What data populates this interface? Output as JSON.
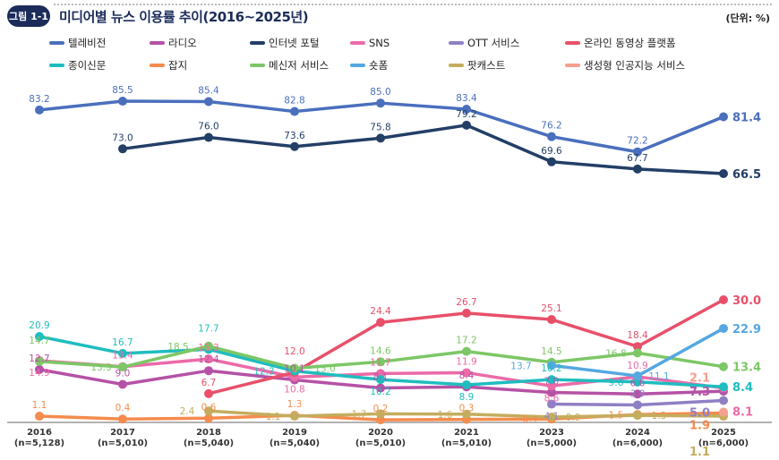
{
  "header": {
    "badge": "그림 1-1",
    "title": "미디어별 뉴스 이용률 추이(2016~2025년)",
    "unit": "(단위: %)"
  },
  "chart_data": {
    "type": "line",
    "title": "미디어별 뉴스 이용률 추이(2016~2025년)",
    "unit": "(단위: %)",
    "categories": [
      "2016",
      "2017",
      "2018",
      "2019",
      "2020",
      "2021",
      "2023",
      "2024",
      "2025"
    ],
    "sample_sizes": [
      "(n=5,128)",
      "(n=5,010)",
      "(n=5,040)",
      "(n=5,040)",
      "(n=5,010)",
      "(n=5,010)",
      "(n=5,000)",
      "(n=6,000)",
      "(n=6,000)"
    ],
    "ylim": [
      0,
      90
    ],
    "axis_break": true,
    "legend_position": "top",
    "series": [
      {
        "name": "텔레비전",
        "color": "#4a6fbd",
        "values": [
          83.2,
          85.5,
          85.4,
          82.8,
          85.0,
          83.4,
          76.2,
          72.2,
          81.4
        ]
      },
      {
        "name": "라디오",
        "color": "#b552a6",
        "values": [
          12.7,
          9.0,
          12.4,
          10.1,
          8.1,
          8.4,
          7.0,
          6.6,
          7.3
        ]
      },
      {
        "name": "인터넷 포털",
        "color": "#233f66",
        "values": [
          null,
          73.0,
          76.0,
          73.6,
          75.8,
          79.2,
          69.6,
          67.7,
          66.5
        ]
      },
      {
        "name": "SNS",
        "color": "#ec6aa8",
        "values": [
          14.9,
          13.4,
          15.3,
          10.8,
          11.7,
          11.9,
          8.6,
          10.9,
          8.1
        ]
      },
      {
        "name": "OTT 서비스",
        "color": "#8f80c4",
        "values": [
          null,
          null,
          null,
          null,
          null,
          null,
          4.1,
          3.9,
          5.0
        ]
      },
      {
        "name": "온라인 동영상 플랫폼",
        "color": "#e8506a",
        "values": [
          null,
          null,
          6.7,
          12.0,
          24.4,
          26.7,
          25.1,
          18.4,
          30.0
        ]
      },
      {
        "name": "종이신문",
        "color": "#1fbdbf",
        "values": [
          20.9,
          16.7,
          17.7,
          12.3,
          10.2,
          8.9,
          10.2,
          9.6,
          8.4
        ]
      },
      {
        "name": "잡지",
        "color": "#f58b4c",
        "values": [
          1.1,
          0.4,
          0.6,
          1.3,
          0.2,
          0.3,
          0.4,
          1.5,
          1.9
        ]
      },
      {
        "name": "메신저 서비스",
        "color": "#7dc766",
        "values": [
          14.7,
          13.3,
          18.5,
          13.0,
          14.6,
          17.2,
          14.5,
          16.8,
          13.4
        ]
      },
      {
        "name": "숏폼",
        "color": "#55a8e0",
        "values": [
          null,
          null,
          null,
          null,
          null,
          null,
          13.7,
          11.1,
          22.9
        ]
      },
      {
        "name": "팟캐스트",
        "color": "#c4ad5e",
        "values": [
          null,
          null,
          2.4,
          1.1,
          1.7,
          1.6,
          0.9,
          1.3,
          1.1
        ]
      },
      {
        "name": "생성형 인공지능 서비스",
        "color": "#f5a08e",
        "values": [
          null,
          null,
          null,
          null,
          null,
          null,
          null,
          null,
          2.1
        ]
      }
    ]
  }
}
